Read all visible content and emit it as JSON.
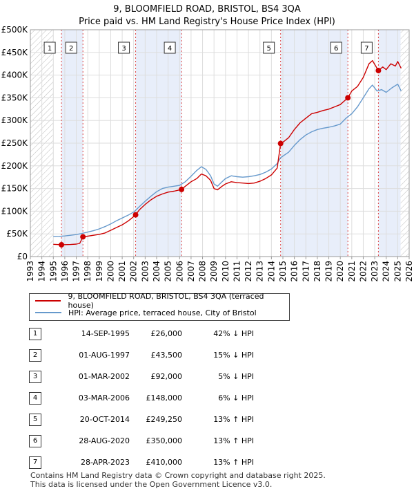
{
  "title_line1": "9, BLOOMFIELD ROAD, BRISTOL, BS4 3QA",
  "title_line2": "Price paid vs. HM Land Registry's House Price Index (HPI)",
  "chart_data": {
    "type": "line",
    "title": "Price paid vs. HM Land Registry's House Price Index (HPI)",
    "xlim": [
      1993,
      2026
    ],
    "ylim": [
      0,
      500000
    ],
    "x_ticks": [
      "1993",
      "1994",
      "1995",
      "1996",
      "1997",
      "1998",
      "1999",
      "2000",
      "2001",
      "2002",
      "2003",
      "2004",
      "2005",
      "2006",
      "2007",
      "2008",
      "2009",
      "2010",
      "2011",
      "2012",
      "2013",
      "2014",
      "2015",
      "2016",
      "2017",
      "2018",
      "2019",
      "2020",
      "2021",
      "2022",
      "2023",
      "2024",
      "2025",
      "2026"
    ],
    "y_ticks": [
      {
        "value": 0,
        "label": "£0"
      },
      {
        "value": 50000,
        "label": "£50K"
      },
      {
        "value": 100000,
        "label": "£100K"
      },
      {
        "value": 150000,
        "label": "£150K"
      },
      {
        "value": 200000,
        "label": "£200K"
      },
      {
        "value": 250000,
        "label": "£250K"
      },
      {
        "value": 300000,
        "label": "£300K"
      },
      {
        "value": 350000,
        "label": "£350K"
      },
      {
        "value": 400000,
        "label": "£400K"
      },
      {
        "value": 450000,
        "label": "£450K"
      },
      {
        "value": 500000,
        "label": "£500K"
      }
    ],
    "hatch_before": 1995.0,
    "hatch_after": 2025.25,
    "colors": {
      "property": "#cc0000",
      "hpi": "#6699cc",
      "vline": "#dd4444",
      "shade": "#e8eefa"
    },
    "series": [
      {
        "name": "9, BLOOMFIELD ROAD, BRISTOL, BS4 3QA (terraced house)",
        "color": "#cc0000",
        "points": [
          [
            1995.0,
            27000
          ],
          [
            1995.3,
            26500
          ],
          [
            1995.7,
            26000
          ],
          [
            1996.0,
            26200
          ],
          [
            1996.5,
            26500
          ],
          [
            1997.0,
            27500
          ],
          [
            1997.3,
            29000
          ],
          [
            1997.58,
            43500
          ],
          [
            1998.0,
            45000
          ],
          [
            1998.5,
            47000
          ],
          [
            1999.0,
            49000
          ],
          [
            1999.5,
            52000
          ],
          [
            2000.0,
            58000
          ],
          [
            2000.5,
            64000
          ],
          [
            2001.0,
            70000
          ],
          [
            2001.5,
            78000
          ],
          [
            2001.8,
            84000
          ],
          [
            2002.17,
            92000
          ],
          [
            2002.5,
            103000
          ],
          [
            2003.0,
            115000
          ],
          [
            2003.5,
            125000
          ],
          [
            2004.0,
            133000
          ],
          [
            2004.5,
            138000
          ],
          [
            2005.0,
            142000
          ],
          [
            2005.5,
            144000
          ],
          [
            2006.17,
            148000
          ],
          [
            2006.5,
            155000
          ],
          [
            2007.0,
            165000
          ],
          [
            2007.5,
            172000
          ],
          [
            2007.9,
            182000
          ],
          [
            2008.3,
            178000
          ],
          [
            2008.7,
            168000
          ],
          [
            2009.0,
            150000
          ],
          [
            2009.3,
            147000
          ],
          [
            2009.7,
            155000
          ],
          [
            2010.0,
            160000
          ],
          [
            2010.5,
            165000
          ],
          [
            2011.0,
            163000
          ],
          [
            2011.5,
            162000
          ],
          [
            2012.0,
            161000
          ],
          [
            2012.5,
            162000
          ],
          [
            2013.0,
            166000
          ],
          [
            2013.5,
            172000
          ],
          [
            2014.0,
            180000
          ],
          [
            2014.5,
            195000
          ],
          [
            2014.8,
            249250
          ],
          [
            2015.0,
            252000
          ],
          [
            2015.5,
            262000
          ],
          [
            2016.0,
            280000
          ],
          [
            2016.5,
            295000
          ],
          [
            2017.0,
            305000
          ],
          [
            2017.5,
            315000
          ],
          [
            2018.0,
            318000
          ],
          [
            2018.5,
            322000
          ],
          [
            2019.0,
            325000
          ],
          [
            2019.5,
            330000
          ],
          [
            2020.0,
            335000
          ],
          [
            2020.66,
            350000
          ],
          [
            2021.0,
            365000
          ],
          [
            2021.5,
            375000
          ],
          [
            2022.0,
            395000
          ],
          [
            2022.5,
            425000
          ],
          [
            2022.8,
            432000
          ],
          [
            2023.32,
            410000
          ],
          [
            2023.7,
            418000
          ],
          [
            2024.0,
            412000
          ],
          [
            2024.4,
            425000
          ],
          [
            2024.8,
            420000
          ],
          [
            2025.0,
            430000
          ],
          [
            2025.3,
            415000
          ]
        ]
      },
      {
        "name": "HPI: Average price, terraced house, City of Bristol",
        "color": "#6699cc",
        "points": [
          [
            1995.0,
            44000
          ],
          [
            1995.5,
            44500
          ],
          [
            1996.0,
            45500
          ],
          [
            1996.5,
            47000
          ],
          [
            1997.0,
            48500
          ],
          [
            1997.5,
            51000
          ],
          [
            1998.0,
            54000
          ],
          [
            1998.5,
            57000
          ],
          [
            1999.0,
            61000
          ],
          [
            1999.5,
            66000
          ],
          [
            2000.0,
            72000
          ],
          [
            2000.5,
            79000
          ],
          [
            2001.0,
            85000
          ],
          [
            2001.5,
            91000
          ],
          [
            2002.0,
            98000
          ],
          [
            2002.5,
            110000
          ],
          [
            2003.0,
            122000
          ],
          [
            2003.5,
            133000
          ],
          [
            2004.0,
            143000
          ],
          [
            2004.5,
            150000
          ],
          [
            2005.0,
            153000
          ],
          [
            2005.5,
            155000
          ],
          [
            2006.0,
            157000
          ],
          [
            2006.5,
            165000
          ],
          [
            2007.0,
            177000
          ],
          [
            2007.5,
            190000
          ],
          [
            2007.9,
            198000
          ],
          [
            2008.3,
            192000
          ],
          [
            2008.7,
            178000
          ],
          [
            2009.0,
            160000
          ],
          [
            2009.3,
            155000
          ],
          [
            2009.7,
            165000
          ],
          [
            2010.0,
            172000
          ],
          [
            2010.5,
            178000
          ],
          [
            2011.0,
            176000
          ],
          [
            2011.5,
            175000
          ],
          [
            2012.0,
            176000
          ],
          [
            2012.5,
            178000
          ],
          [
            2013.0,
            181000
          ],
          [
            2013.5,
            186000
          ],
          [
            2014.0,
            193000
          ],
          [
            2014.5,
            205000
          ],
          [
            2014.8,
            218000
          ],
          [
            2015.5,
            230000
          ],
          [
            2016.0,
            245000
          ],
          [
            2016.5,
            258000
          ],
          [
            2017.0,
            268000
          ],
          [
            2017.5,
            275000
          ],
          [
            2018.0,
            280000
          ],
          [
            2018.5,
            283000
          ],
          [
            2019.0,
            285000
          ],
          [
            2019.5,
            288000
          ],
          [
            2020.0,
            292000
          ],
          [
            2020.5,
            305000
          ],
          [
            2021.0,
            315000
          ],
          [
            2021.5,
            330000
          ],
          [
            2022.0,
            350000
          ],
          [
            2022.5,
            370000
          ],
          [
            2022.8,
            378000
          ],
          [
            2023.2,
            365000
          ],
          [
            2023.6,
            368000
          ],
          [
            2024.0,
            362000
          ],
          [
            2024.5,
            372000
          ],
          [
            2025.0,
            380000
          ],
          [
            2025.3,
            365000
          ]
        ]
      }
    ],
    "sales": [
      {
        "label": "1",
        "date": "14-SEP-1995",
        "year": 1995.71,
        "price": 26000
      },
      {
        "label": "2",
        "date": "01-AUG-1997",
        "year": 1997.58,
        "price": 43500
      },
      {
        "label": "3",
        "date": "01-MAR-2002",
        "year": 2002.17,
        "price": 92000
      },
      {
        "label": "4",
        "date": "03-MAR-2006",
        "year": 2006.17,
        "price": 148000
      },
      {
        "label": "5",
        "date": "20-OCT-2014",
        "year": 2014.8,
        "price": 249250
      },
      {
        "label": "6",
        "date": "28-AUG-2020",
        "year": 2020.66,
        "price": 350000
      },
      {
        "label": "7",
        "date": "28-APR-2023",
        "year": 2023.32,
        "price": 410000
      }
    ]
  },
  "legend": {
    "property_label": "9, BLOOMFIELD ROAD, BRISTOL, BS4 3QA (terraced house)",
    "hpi_label": "HPI: Average price, terraced house, City of Bristol"
  },
  "table": [
    {
      "num": "1",
      "date": "14-SEP-1995",
      "price": "£26,000",
      "hpi": "42% ↓ HPI"
    },
    {
      "num": "2",
      "date": "01-AUG-1997",
      "price": "£43,500",
      "hpi": "15% ↓ HPI"
    },
    {
      "num": "3",
      "date": "01-MAR-2002",
      "price": "£92,000",
      "hpi": "5% ↓ HPI"
    },
    {
      "num": "4",
      "date": "03-MAR-2006",
      "price": "£148,000",
      "hpi": "6% ↓ HPI"
    },
    {
      "num": "5",
      "date": "20-OCT-2014",
      "price": "£249,250",
      "hpi": "13% ↑ HPI"
    },
    {
      "num": "6",
      "date": "28-AUG-2020",
      "price": "£350,000",
      "hpi": "13% ↑ HPI"
    },
    {
      "num": "7",
      "date": "28-APR-2023",
      "price": "£410,000",
      "hpi": "13% ↑ HPI"
    }
  ],
  "footer_line1": "Contains HM Land Registry data © Crown copyright and database right 2025.",
  "footer_line2": "This data is licensed under the Open Government Licence v3.0."
}
